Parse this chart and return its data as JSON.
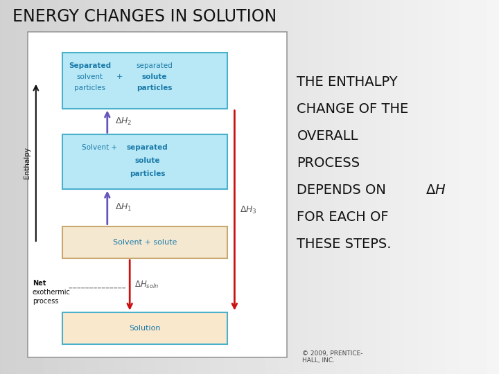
{
  "title": "ENERGY CHANGES IN SOLUTION",
  "box_border_color": "#4ab0cc",
  "box_top_color": "#b8e8f5",
  "box_mid_color": "#b8e8f5",
  "box_solvent_color": "#f5e8d0",
  "box_solvent_border": "#c8a870",
  "box_solution_color": "#fae8cc",
  "box_solution_border": "#4ab0cc",
  "arrow_purple": "#6655bb",
  "arrow_red": "#cc1111",
  "text_blue": "#1a7aaa",
  "text_black": "#111111",
  "text_gray": "#555555",
  "diagram_border": "#aaaaaa",
  "right_lines": [
    "THE ENTHALPY",
    "CHANGE OF THE",
    "OVERALL",
    "PROCESS",
    "DEPENDS ON",
    "FOR EACH OF",
    "THESE STEPS."
  ],
  "copyright": "© 2009, PRENTICE-\nHALL, INC."
}
